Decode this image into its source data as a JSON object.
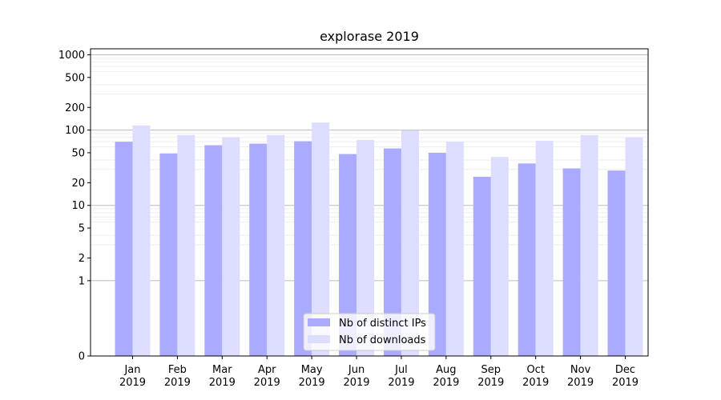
{
  "chart_data": {
    "type": "bar",
    "title": "explorase 2019",
    "xlabel": "",
    "ylabel": "",
    "y_scale": "symlog",
    "ylim": [
      0,
      1200
    ],
    "y_ticks": [
      {
        "value": 0,
        "label": "0"
      },
      {
        "value": 1,
        "label": "1"
      },
      {
        "value": 2,
        "label": "2"
      },
      {
        "value": 5,
        "label": "5"
      },
      {
        "value": 10,
        "label": "10"
      },
      {
        "value": 20,
        "label": "20"
      },
      {
        "value": 50,
        "label": "50"
      },
      {
        "value": 100,
        "label": "100"
      },
      {
        "value": 200,
        "label": "200"
      },
      {
        "value": 500,
        "label": "500"
      },
      {
        "value": 1000,
        "label": "1000"
      }
    ],
    "categories": [
      {
        "month": "Jan",
        "year": "2019"
      },
      {
        "month": "Feb",
        "year": "2019"
      },
      {
        "month": "Mar",
        "year": "2019"
      },
      {
        "month": "Apr",
        "year": "2019"
      },
      {
        "month": "May",
        "year": "2019"
      },
      {
        "month": "Jun",
        "year": "2019"
      },
      {
        "month": "Jul",
        "year": "2019"
      },
      {
        "month": "Aug",
        "year": "2019"
      },
      {
        "month": "Sep",
        "year": "2019"
      },
      {
        "month": "Oct",
        "year": "2019"
      },
      {
        "month": "Nov",
        "year": "2019"
      },
      {
        "month": "Dec",
        "year": "2019"
      }
    ],
    "series": [
      {
        "name": "Nb of distinct IPs",
        "color": "#aaaaff",
        "values": [
          70,
          49,
          63,
          66,
          71,
          48,
          57,
          50,
          24,
          36,
          31,
          29
        ]
      },
      {
        "name": "Nb of downloads",
        "color": "#ddddff",
        "values": [
          115,
          86,
          80,
          86,
          126,
          74,
          99,
          70,
          44,
          72,
          86,
          80
        ]
      }
    ],
    "grid": true,
    "legend_position": "lower-center"
  }
}
